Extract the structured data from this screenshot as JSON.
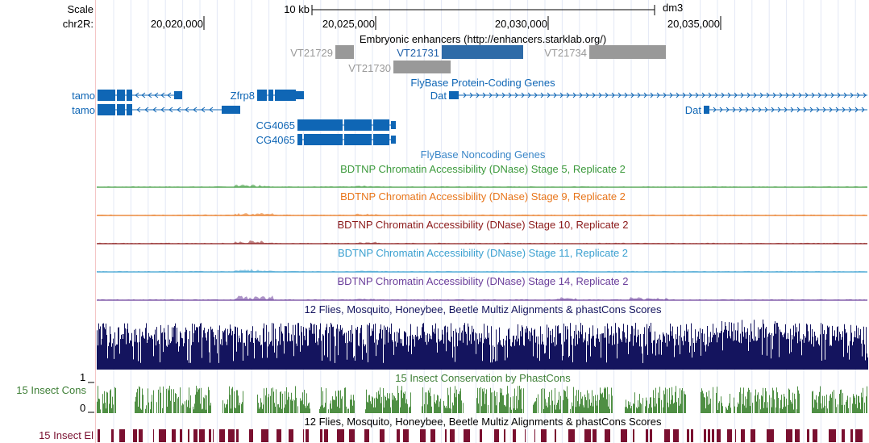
{
  "ruler": {
    "scale_label": "Scale",
    "chrom_label": "chr2R:",
    "scale_bar_text": "10 kb",
    "assembly": "dm3",
    "positions": [
      "20,020,000",
      "20,025,000",
      "20,030,000",
      "20,035,000"
    ]
  },
  "enhancers": {
    "title": "Embryonic enhancers (http://enhancers.starklab.org/)",
    "items": [
      "VT21729",
      "VT21731",
      "VT21734",
      "VT21730"
    ],
    "colors": {
      "gray": "#999999",
      "selected": "#2e6ba8",
      "selected_label": "#1f5fa8"
    }
  },
  "genes": {
    "title": "FlyBase Protein-Coding Genes",
    "color": "#0f66b5",
    "labels": [
      "tamo",
      "tamo",
      "Zfrp8",
      "Dat",
      "Dat",
      "CG4065",
      "CG4065"
    ]
  },
  "noncoding": {
    "title": "FlyBase Noncoding Genes",
    "color": "#3a86c8"
  },
  "dnase": [
    {
      "title": "BDTNP Chromatin Accessibility (DNase) Stage 5, Replicate 2",
      "color": "#3c9a3c"
    },
    {
      "title": "BDTNP Chromatin Accessibility (DNase) Stage 9, Replicate 2",
      "color": "#e8751a"
    },
    {
      "title": "BDTNP Chromatin Accessibility (DNase) Stage 10, Replicate 2",
      "color": "#8b1a1a"
    },
    {
      "title": "BDTNP Chromatin Accessibility (DNase) Stage 11, Replicate 2",
      "color": "#3aa0d0"
    },
    {
      "title": "BDTNP Chromatin Accessibility (DNase) Stage 14, Replicate 2",
      "color": "#6a3d9a"
    }
  ],
  "multiz": {
    "title": "12 Flies, Mosquito, Honeybee, Beetle Multiz Alignments & phastCons Scores",
    "color": "#14145e"
  },
  "phastcons": {
    "title": "15 Insect Conservation by PhastCons",
    "side_label": "15 Insect Cons",
    "ymax": "1",
    "ymin": "0",
    "color": "#4f8f44",
    "label_color": "#3e7f36"
  },
  "elements": {
    "title": "12 Flies, Mosquito, Honeybee, Beetle Multiz Alignments & phastCons Scores",
    "side_label": "15 Insect El",
    "color": "#7a1030",
    "label_color": "#7a1030"
  }
}
